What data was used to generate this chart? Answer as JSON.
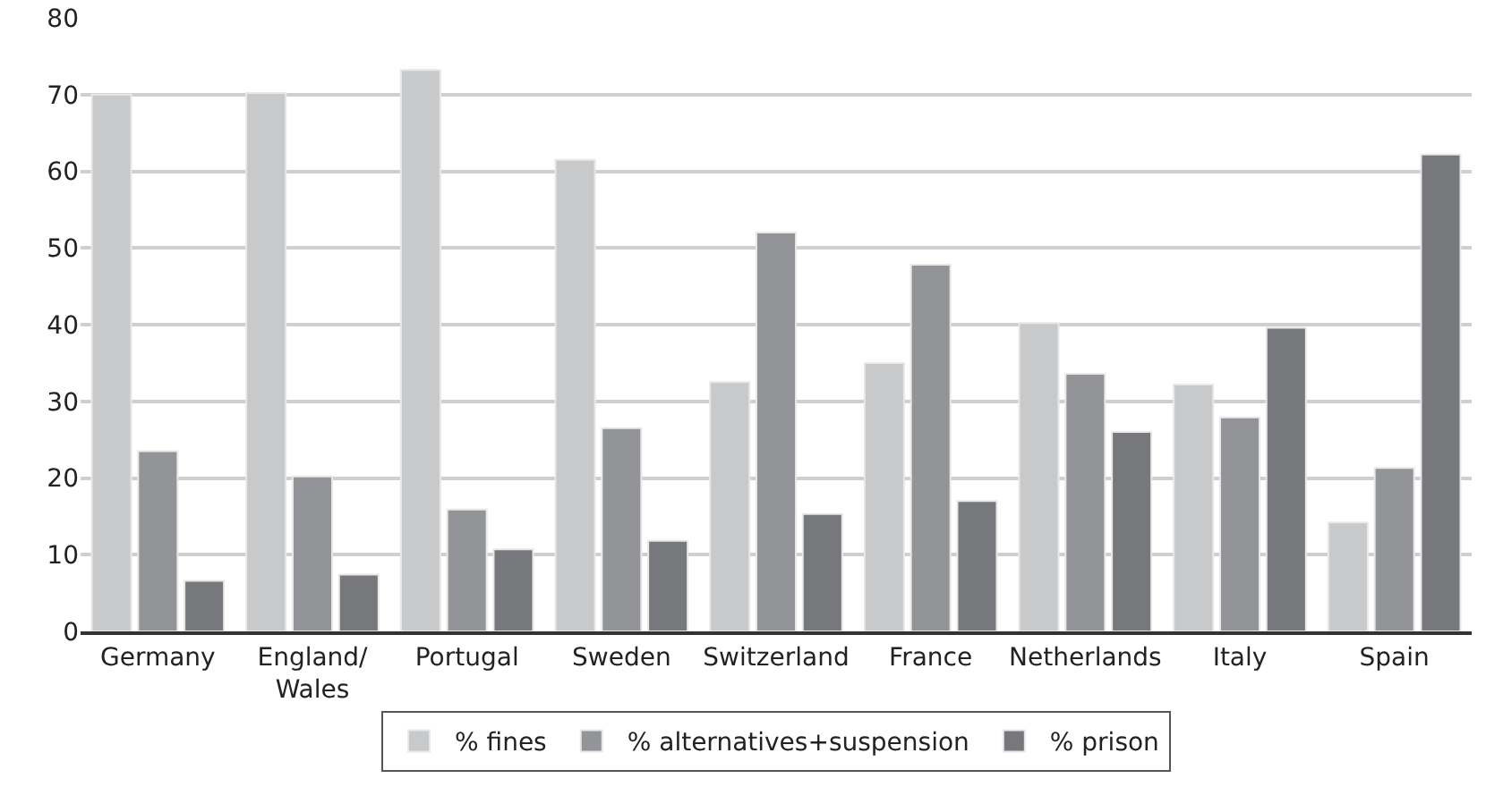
{
  "chart_data": {
    "type": "bar",
    "categories": [
      "Germany",
      "England/\nWales",
      "Portugal",
      "Sweden",
      "Switzerland",
      "France",
      "Netherlands",
      "Italy",
      "Spain"
    ],
    "series": [
      {
        "name": "% fines",
        "color": "#c8c9cb",
        "values": [
          70,
          70.2,
          73.2,
          61.5,
          32.5,
          35,
          40.2,
          32.2,
          14.2
        ]
      },
      {
        "name": "% alternatives+suspension",
        "color": "#939497",
        "values": [
          23.5,
          20.2,
          15.9,
          26.5,
          52,
          47.8,
          33.6,
          27.9,
          21.3
        ]
      },
      {
        "name": "% prison",
        "color": "#77787c",
        "values": [
          6.6,
          7.4,
          10.7,
          11.8,
          15.3,
          17,
          26,
          39.6,
          62.2
        ]
      }
    ],
    "ylim": [
      0,
      80
    ],
    "yticks": [
      0,
      10,
      20,
      30,
      40,
      50,
      60,
      70,
      80
    ],
    "grid": "y",
    "legend": "bottom"
  }
}
